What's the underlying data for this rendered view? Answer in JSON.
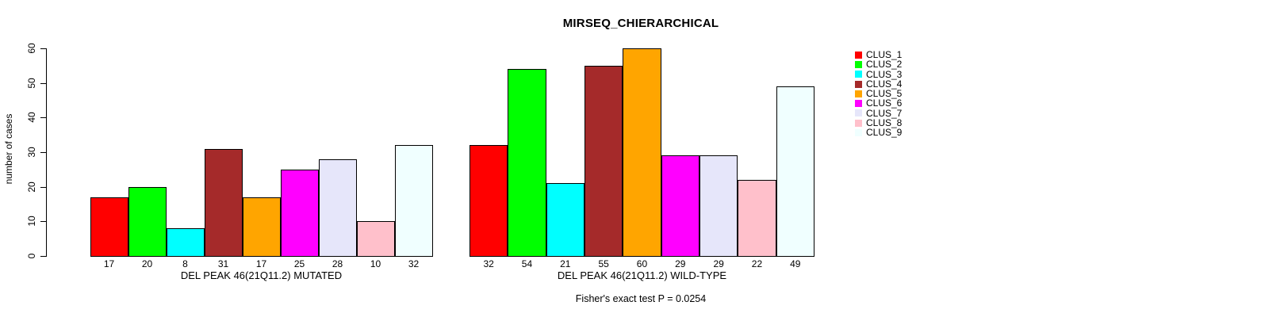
{
  "chart_data": {
    "type": "bar",
    "title": "MIRSEQ_CHIERARCHICAL",
    "ylabel": "number of cases",
    "xlabel": "",
    "ylim": [
      0,
      60
    ],
    "yticks": [
      0,
      10,
      20,
      30,
      40,
      50,
      60
    ],
    "grid": false,
    "bar_value_labels": true,
    "annotation": "Fisher's exact test P = 0.0254",
    "colors": [
      "#FF0000",
      "#00FF00",
      "#00FFFF",
      "#A52A2A",
      "#FFA500",
      "#FF00FF",
      "#E6E6FA",
      "#FFC0CB",
      "#F0FFFF"
    ],
    "legend": {
      "position": "right",
      "entries": [
        {
          "label": "CLUS_1",
          "color": "#FF0000"
        },
        {
          "label": "CLUS_2",
          "color": "#00FF00"
        },
        {
          "label": "CLUS_3",
          "color": "#00FFFF"
        },
        {
          "label": "CLUS_4",
          "color": "#A52A2A"
        },
        {
          "label": "CLUS_5",
          "color": "#FFA500"
        },
        {
          "label": "CLUS_6",
          "color": "#FF00FF"
        },
        {
          "label": "CLUS_7",
          "color": "#E6E6FA"
        },
        {
          "label": "CLUS_8",
          "color": "#FFC0CB"
        },
        {
          "label": "CLUS_9",
          "color": "#F0FFFF"
        }
      ]
    },
    "groups": [
      {
        "label": "DEL PEAK 46(21Q11.2) MUTATED",
        "series_labels": [
          "CLUS_1",
          "CLUS_2",
          "CLUS_3",
          "CLUS_4",
          "CLUS_5",
          "CLUS_6",
          "CLUS_7",
          "CLUS_8",
          "CLUS_9"
        ],
        "values": [
          17,
          20,
          8,
          31,
          17,
          25,
          28,
          10,
          32
        ]
      },
      {
        "label": "DEL PEAK 46(21Q11.2) WILD-TYPE",
        "series_labels": [
          "CLUS_1",
          "CLUS_2",
          "CLUS_3",
          "CLUS_4",
          "CLUS_5",
          "CLUS_6",
          "CLUS_7",
          "CLUS_8",
          "CLUS_9"
        ],
        "values": [
          32,
          54,
          21,
          55,
          60,
          29,
          29,
          22,
          49
        ]
      }
    ]
  }
}
